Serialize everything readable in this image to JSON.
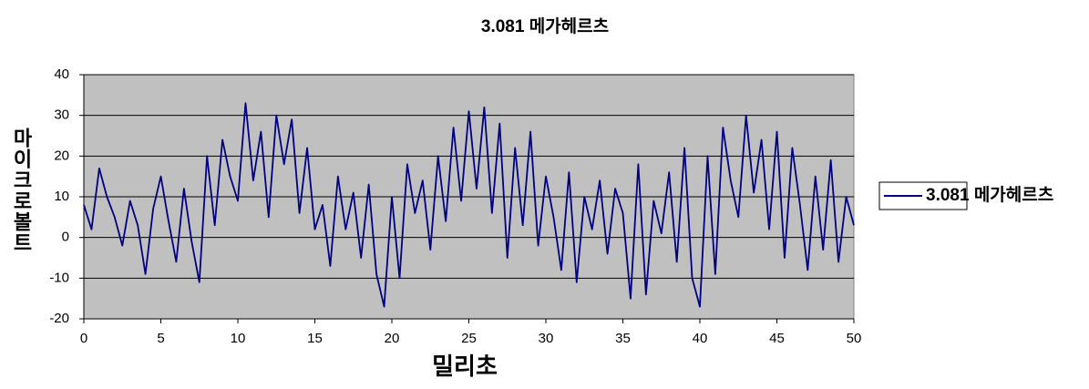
{
  "chart_data": {
    "type": "line",
    "title": "3.081 메가헤르츠",
    "x_label": "밀리초",
    "y_label": "마이크로볼트",
    "x": [
      0,
      0.5,
      1,
      1.5,
      2,
      2.5,
      3,
      3.5,
      4,
      4.5,
      5,
      5.5,
      6,
      6.5,
      7,
      7.5,
      8,
      8.5,
      9,
      9.5,
      10,
      10.5,
      11,
      11.5,
      12,
      12.5,
      13,
      13.5,
      14,
      14.5,
      15,
      15.5,
      16,
      16.5,
      17,
      17.5,
      18,
      18.5,
      19,
      19.5,
      20,
      20.5,
      21,
      21.5,
      22,
      22.5,
      23,
      23.5,
      24,
      24.5,
      25,
      25.5,
      26,
      26.5,
      27,
      27.5,
      28,
      28.5,
      29,
      29.5,
      30,
      30.5,
      31,
      31.5,
      32,
      32.5,
      33,
      33.5,
      34,
      34.5,
      35,
      35.5,
      36,
      36.5,
      37,
      37.5,
      38,
      38.5,
      39,
      39.5,
      40,
      40.5,
      41,
      41.5,
      42,
      42.5,
      43,
      43.5,
      44,
      44.5,
      45,
      45.5,
      46,
      46.5,
      47,
      47.5,
      48,
      48.5,
      49,
      49.5,
      50
    ],
    "series": [
      {
        "name": "3.081 메가헤르츠",
        "color": "#000080",
        "values": [
          8,
          2,
          17,
          10,
          5,
          -2,
          9,
          3,
          -9,
          7,
          15,
          4,
          -6,
          12,
          -1,
          -11,
          20,
          3,
          24,
          15,
          9,
          33,
          14,
          26,
          5,
          30,
          18,
          29,
          6,
          22,
          2,
          8,
          -7,
          15,
          2,
          11,
          -5,
          13,
          -9,
          -17,
          10,
          -10,
          18,
          6,
          14,
          -3,
          20,
          4,
          27,
          9,
          31,
          12,
          32,
          6,
          28,
          -5,
          22,
          3,
          26,
          -2,
          15,
          5,
          -8,
          16,
          -11,
          10,
          2,
          14,
          -4,
          12,
          6,
          -15,
          18,
          -14,
          9,
          1,
          16,
          -6,
          22,
          -10,
          -17,
          20,
          -9,
          27,
          14,
          5,
          30,
          11,
          24,
          2,
          26,
          -5,
          22,
          8,
          -8,
          15,
          -3,
          19,
          -6,
          10,
          3
        ]
      }
    ],
    "xlim": [
      0,
      50
    ],
    "ylim": [
      -20,
      40
    ],
    "xticks": [
      0,
      5,
      10,
      15,
      20,
      25,
      30,
      35,
      40,
      45,
      50
    ],
    "yticks": [
      -20,
      -10,
      0,
      10,
      20,
      30,
      40
    ],
    "grid": true
  }
}
